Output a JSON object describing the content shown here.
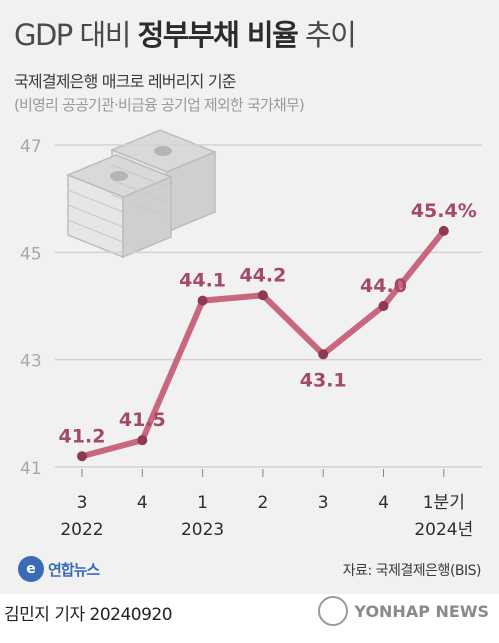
{
  "title_light_1": "GDP 대비 ",
  "title_bold": "정부부채 비율",
  "title_light_2": " 추이",
  "subtitle": "국제결제은행 매크로 레버리지 기준",
  "subtitle2": "(비영리 공공기관·비금융 공기업 제외한 국가채무)",
  "source": "자료: 국제결제은행(BIS)",
  "logo_text": "연합뉴스",
  "footer": "김민지 기자  20240920",
  "watermark": "YONHAP NEWS",
  "chart_data": {
    "type": "line",
    "categories": [
      "3",
      "4",
      "1",
      "2",
      "3",
      "4",
      "1분기"
    ],
    "year_labels": [
      {
        "under": 0,
        "text": "2022"
      },
      {
        "under": 2,
        "text": "2023"
      },
      {
        "under": 6,
        "text": "2024년"
      }
    ],
    "values": [
      41.2,
      41.5,
      44.1,
      44.2,
      43.1,
      44.0,
      45.4
    ],
    "value_labels": [
      "41.2",
      "41.5",
      "44.1",
      "44.2",
      "43.1",
      "44.0",
      "45.4%"
    ],
    "yticks": [
      41,
      43,
      45,
      47
    ],
    "ylim": [
      41,
      47
    ],
    "grid": true,
    "colors": {
      "line": "#c9677e",
      "marker": "#8e3852",
      "label": "#a34a66",
      "grid": "#d2d2d2"
    }
  }
}
